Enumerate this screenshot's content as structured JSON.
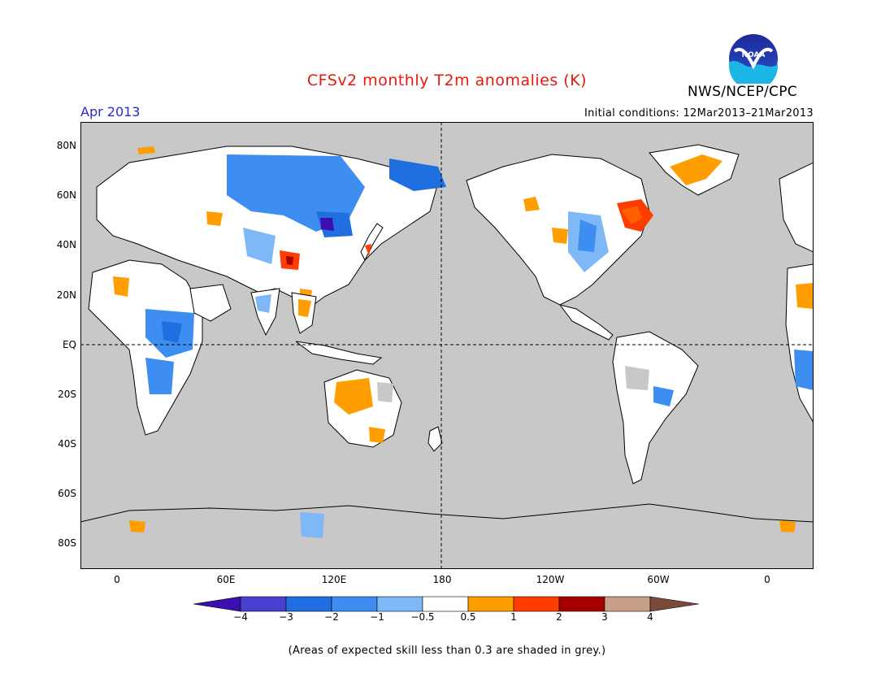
{
  "title": "CFSv2 monthly T2m anomalies (K)",
  "period": "Apr 2013",
  "initial_conditions": "Initial conditions: 12Mar2013–21Mar2013",
  "agency": "NWS/NCEP/CPC",
  "logo_text": "NOAA",
  "lat_labels": [
    "80N",
    "60N",
    "40N",
    "20N",
    "EQ",
    "20S",
    "40S",
    "60S",
    "80S"
  ],
  "lon_labels": [
    "0",
    "60E",
    "120E",
    "180",
    "120W",
    "60W",
    "0"
  ],
  "colorbar": {
    "labels": [
      "−4",
      "−3",
      "−2",
      "−1",
      "−0.5",
      "0.5",
      "1",
      "2",
      "3",
      "4"
    ],
    "colors": [
      "#3a10b0",
      "#4a3fd0",
      "#1f6fe0",
      "#3d8ef0",
      "#7fb8f6",
      "#ffffff",
      "#ff9e00",
      "#ff3d00",
      "#a40000",
      "#c8a08a",
      "#7a4a3a"
    ]
  },
  "footnote": "(Areas of expected skill less than 0.3 are shaded in grey.)",
  "map_colors": {
    "no_skill": "#c8c8c8",
    "ocean": "#c8c8c8",
    "land_neutral": "#ffffff"
  }
}
